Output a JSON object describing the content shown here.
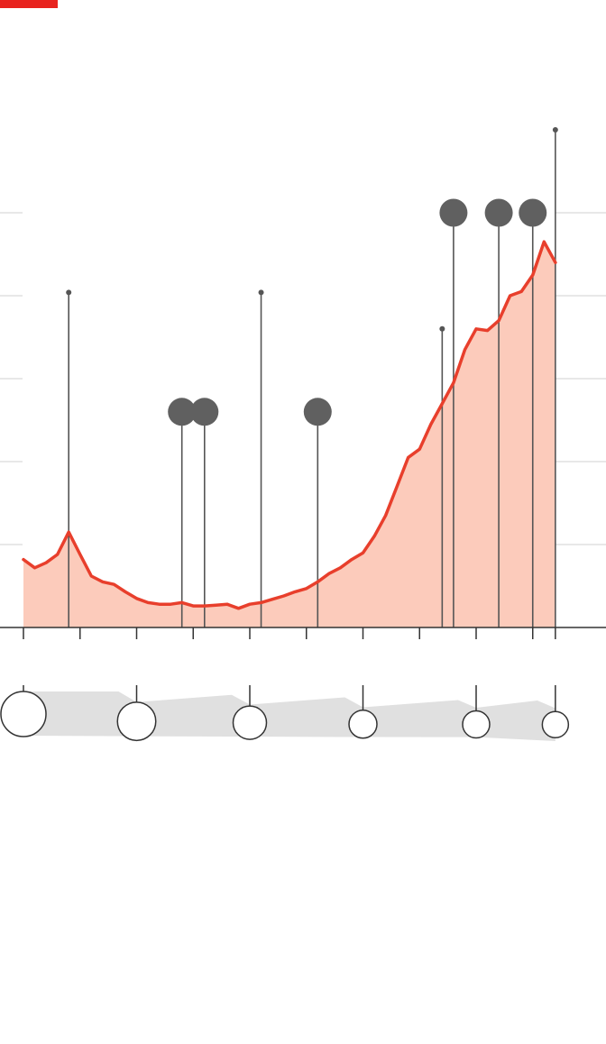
{
  "colors": {
    "accent": "#e8231e",
    "line": "#e83f2c",
    "area": "#fccbbb",
    "grid": "#d9d9d9",
    "marker": "#606060",
    "pin": "#555555",
    "ribbon": "#e0e0e0",
    "axis": "#333333"
  },
  "chart_data": {
    "type": "area",
    "title": "",
    "xlabel": "",
    "ylabel": "",
    "grid": true,
    "x": [
      0,
      1,
      2,
      3,
      4,
      5,
      6,
      7,
      8,
      9,
      10,
      11,
      12,
      13,
      14,
      15,
      16,
      17,
      18,
      19,
      20,
      21,
      22,
      23,
      24,
      25,
      26,
      27,
      28,
      29,
      30,
      31,
      32,
      33,
      34,
      35,
      36,
      37,
      38,
      39,
      40,
      41,
      42,
      43,
      44,
      45,
      46,
      47
    ],
    "series": [
      {
        "values": [
          0.82,
          0.72,
          0.78,
          0.88,
          1.15,
          0.88,
          0.62,
          0.55,
          0.52,
          0.43,
          0.35,
          0.3,
          0.28,
          0.28,
          0.3,
          0.26,
          0.26,
          0.27,
          0.28,
          0.23,
          0.28,
          0.3,
          0.34,
          0.38,
          0.43,
          0.47,
          0.55,
          0.65,
          0.72,
          0.82,
          0.9,
          1.1,
          1.35,
          1.7,
          2.05,
          2.15,
          2.45,
          2.7,
          2.95,
          3.35,
          3.6,
          3.58,
          3.7,
          4.0,
          4.05,
          4.25,
          4.65,
          4.4
        ]
      }
    ],
    "ylim": [
      0,
      5
    ],
    "yticks": [
      1,
      2,
      3,
      4,
      5
    ],
    "xticks": [
      0,
      5,
      10,
      15,
      20,
      25,
      30,
      35,
      40,
      45,
      47
    ],
    "events": [
      {
        "x": 4,
        "top": 4.04,
        "type": "pin"
      },
      {
        "x": 14,
        "top": 2.6,
        "type": "dot"
      },
      {
        "x": 16,
        "top": 2.6,
        "type": "dot"
      },
      {
        "x": 21,
        "top": 4.04,
        "type": "pin"
      },
      {
        "x": 26,
        "top": 2.6,
        "type": "dot"
      },
      {
        "x": 37,
        "top": 3.6,
        "type": "pin"
      },
      {
        "x": 38,
        "top": 5.0,
        "type": "dot"
      },
      {
        "x": 42,
        "top": 5.0,
        "type": "dot"
      },
      {
        "x": 45,
        "top": 5.0,
        "type": "dot"
      },
      {
        "x": 47,
        "top": 6.0,
        "type": "pin"
      }
    ],
    "size_timeline": {
      "x": [
        0,
        10,
        20,
        30,
        40,
        47
      ],
      "sizes": [
        1.0,
        0.85,
        0.74,
        0.62,
        0.6,
        0.58
      ]
    }
  }
}
